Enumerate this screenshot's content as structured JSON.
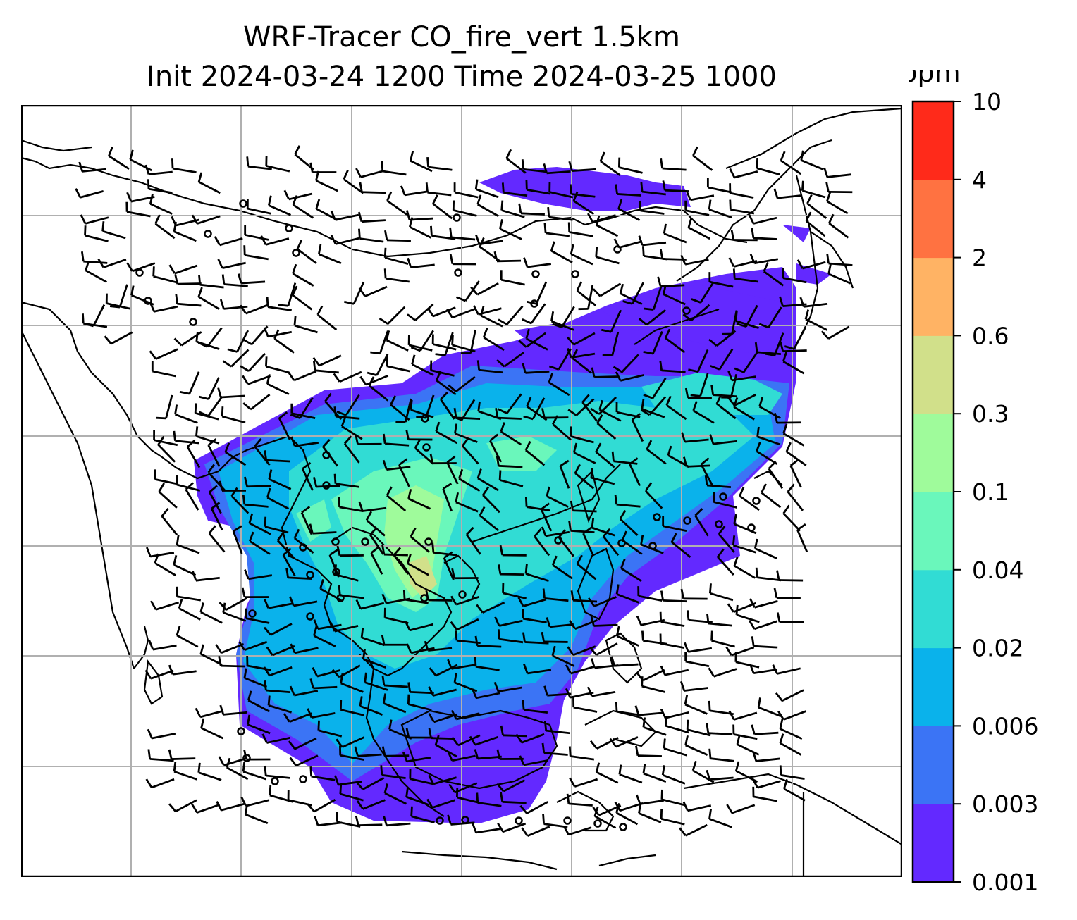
{
  "title": {
    "line1": "WRF-Tracer CO_fire_vert 1.5km",
    "line2": "Init 2024-03-24 1200 Time 2024-03-25 1000"
  },
  "colorbar": {
    "unit": "ppm",
    "ticks": [
      "0.001",
      "0.003",
      "0.006",
      "0.02",
      "0.04",
      "0.1",
      "0.3",
      "0.6",
      "2",
      "4",
      "10"
    ],
    "colors": [
      "#6329ff",
      "#3b74f5",
      "#0ab2eb",
      "#31dcd4",
      "#6af7bb",
      "#9ffb9b",
      "#d1e08a",
      "#ffb364",
      "#ff7241",
      "#ff2a1a"
    ]
  },
  "map": {
    "coastline_color": "#000000",
    "gridline_color": "#b0b0b0",
    "barb_color": "#000000"
  }
}
